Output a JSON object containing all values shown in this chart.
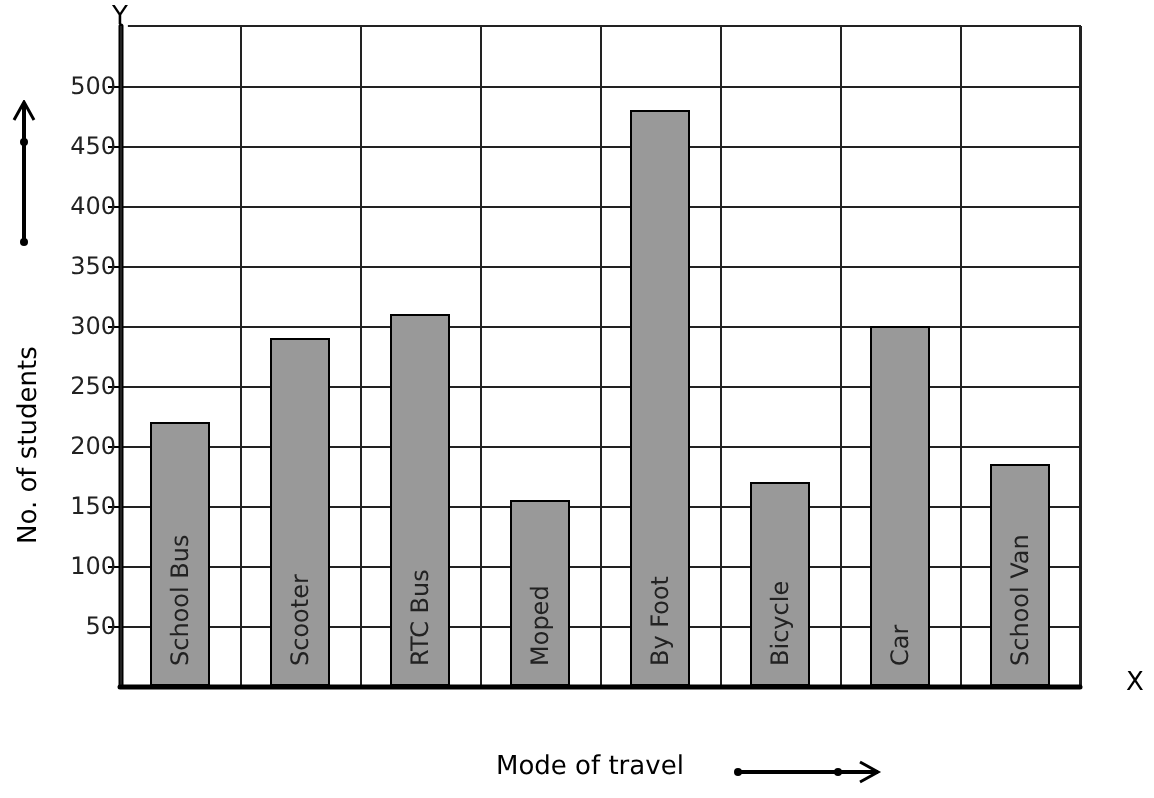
{
  "chart_data": {
    "type": "bar",
    "xlabel": "Mode of travel",
    "ylabel": "No. of students",
    "categories": [
      "School Bus",
      "Scooter",
      "RTC Bus",
      "Moped",
      "By Foot",
      "Bicycle",
      "Car",
      "School Van"
    ],
    "values": [
      220,
      290,
      310,
      155,
      480,
      170,
      300,
      185
    ],
    "color": "#999999",
    "ylim": [
      0,
      550
    ],
    "yticks": [
      50,
      100,
      150,
      200,
      250,
      300,
      350,
      400,
      450,
      500
    ],
    "annotations": [
      "X",
      "Y"
    ],
    "grid": true
  }
}
